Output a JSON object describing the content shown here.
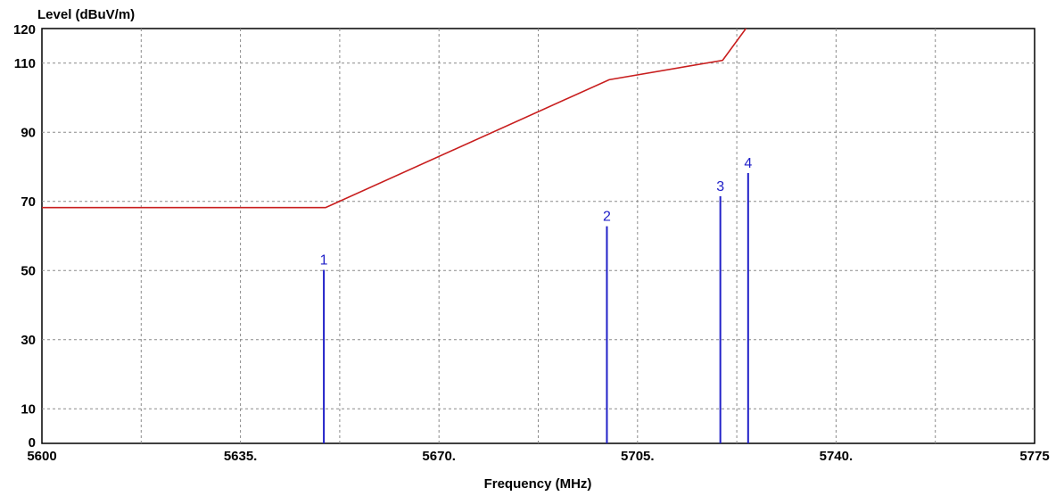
{
  "chart_data": {
    "type": "line",
    "ylabel": "Level (dBuV/m)",
    "xlabel": "Frequency (MHz)",
    "xlim": [
      5600,
      5775
    ],
    "ylim": [
      0,
      120
    ],
    "x_ticks": [
      5600,
      5635,
      5670,
      5705,
      5740,
      5775
    ],
    "x_tick_labels": [
      "5600",
      "5635.",
      "5670.",
      "5705.",
      "5740.",
      "5775"
    ],
    "x_grid": [
      5600,
      5617.5,
      5635,
      5652.5,
      5670,
      5687.5,
      5705,
      5722.5,
      5740,
      5757.5,
      5775
    ],
    "y_ticks": [
      0,
      10,
      30,
      50,
      70,
      90,
      110,
      120
    ],
    "y_grid": [
      10,
      30,
      50,
      70,
      90,
      110
    ],
    "grid": true,
    "limit_line": {
      "color": "#c81e1e",
      "x": [
        5600,
        5650,
        5700,
        5720,
        5725
      ],
      "y": [
        68.2,
        68.2,
        105.2,
        110.8,
        122
      ]
    },
    "markers": {
      "color": "#2020c8",
      "items": [
        {
          "label": "1",
          "x": 5649.7,
          "y": 50.2
        },
        {
          "label": "2",
          "x": 5699.6,
          "y": 62.8
        },
        {
          "label": "3",
          "x": 5719.6,
          "y": 71.5
        },
        {
          "label": "4",
          "x": 5724.5,
          "y": 78.2
        }
      ]
    }
  }
}
